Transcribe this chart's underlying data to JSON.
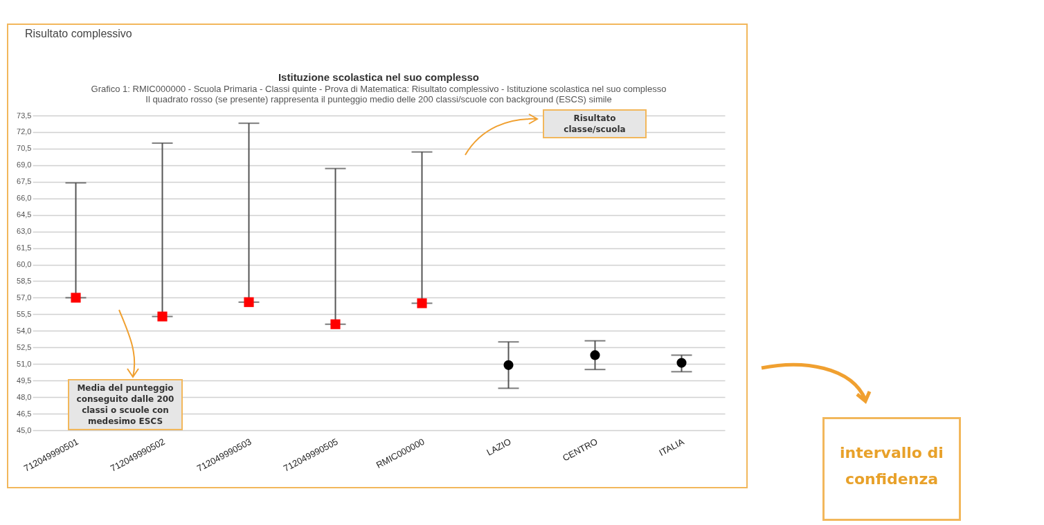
{
  "chart_data": {
    "type": "scatter",
    "title": "Istituzione scolastica nel suo complesso",
    "subtitle": "Grafico 1: RMIC000000 - Scuola Primaria - Classi quinte - Prova di Matematica: Risultato complessivo - Istituzione scolastica nel suo complesso\nIl quadrato rosso (se presente) rappresenta il punteggio medio delle 200 classi/scuole con background (ESCS) simile",
    "categories": [
      "712049990501",
      "712049990502",
      "712049990503",
      "712049990505",
      "RMIC000000",
      "LAZIO",
      "CENTRO",
      "ITALIA"
    ],
    "series": [
      {
        "color": "#ff0000",
        "marker": "square",
        "values": [
          57.0,
          55.3,
          56.6,
          54.6,
          56.5,
          null,
          null,
          null
        ],
        "errors": [
          [
            57.0,
            67.4
          ],
          [
            55.3,
            71.0
          ],
          [
            56.6,
            72.8
          ],
          [
            54.6,
            68.7
          ],
          [
            56.5,
            70.2
          ],
          null,
          null,
          null
        ]
      },
      {
        "color": "#000000",
        "marker": "circle",
        "values": [
          null,
          null,
          null,
          null,
          null,
          50.9,
          51.8,
          51.1
        ],
        "errors": [
          null,
          null,
          null,
          null,
          null,
          [
            48.8,
            53.0
          ],
          [
            50.5,
            53.1
          ],
          [
            50.3,
            51.8
          ]
        ]
      }
    ],
    "ylim": [
      45.0,
      73.5
    ],
    "yticks": [
      {
        "value": 45.0,
        "label": "45,0"
      },
      {
        "value": 46.5,
        "label": "46,5"
      },
      {
        "value": 48.0,
        "label": "48,0"
      },
      {
        "value": 49.5,
        "label": "49,5"
      },
      {
        "value": 51.0,
        "label": "51,0"
      },
      {
        "value": 52.5,
        "label": "52,5"
      },
      {
        "value": 54.0,
        "label": "54,0"
      },
      {
        "value": 55.5,
        "label": "55,5"
      },
      {
        "value": 57.0,
        "label": "57,0"
      },
      {
        "value": 58.5,
        "label": "58,5"
      },
      {
        "value": 60.0,
        "label": "60,0"
      },
      {
        "value": 61.5,
        "label": "61,5"
      },
      {
        "value": 63.0,
        "label": "63,0"
      },
      {
        "value": 64.5,
        "label": "64,5"
      },
      {
        "value": 66.0,
        "label": "66,0"
      },
      {
        "value": 67.5,
        "label": "67,5"
      },
      {
        "value": 69.0,
        "label": "69,0"
      },
      {
        "value": 70.5,
        "label": "70,5"
      },
      {
        "value": 72.0,
        "label": "72,0"
      },
      {
        "value": 73.5,
        "label": "73,5"
      }
    ],
    "grid": "y",
    "annotations": [
      "Risultato complessivo",
      "Media del punteggio conseguito dalle 200 classi o scuole con medesimo ESCS",
      "Risultato classe/scuola",
      "intervallo di confidenza"
    ]
  }
}
